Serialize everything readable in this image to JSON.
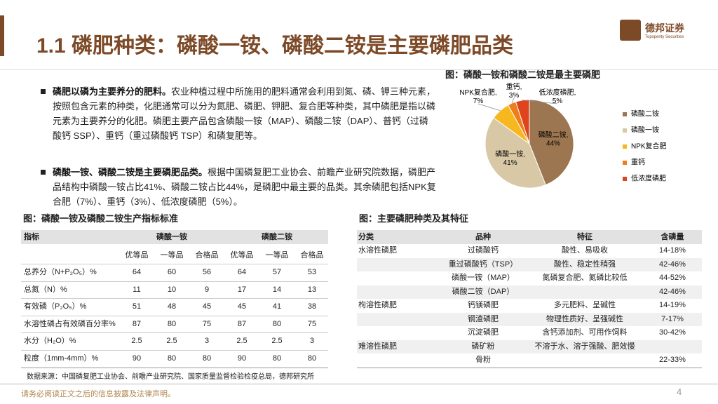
{
  "header": {
    "title": "1.1 磷肥种类：磷酸一铵、磷酸二铵是主要磷肥品类",
    "logo_name": "德邦证券",
    "logo_sub": "Topsperity Securities"
  },
  "bullets": [
    {
      "bold": "磷肥以磷为主要养分的肥料。",
      "text": "农业种植过程中所施用的肥料通常会利用到氮、磷、钾三种元素，按照包含元素的种类，化肥通常可以分为氮肥、磷肥、钾肥、复合肥等种类，其中磷肥是指以磷元素为主要养分的化肥。磷肥主要产品包含磷酸一铵（MAP）、磷酸二铵（DAP）、普钙（过磷酸钙 SSP）、重钙（重过磷酸钙 TSP）和磷复肥等。"
    },
    {
      "bold": "磷酸一铵、磷酸二铵是主要磷肥品类。",
      "text": "根据中国磷复肥工业协会、前瞻产业研究院数据，磷肥产品结构中磷酸一铵占比41%、磷酸二铵占比44%，是磷肥中最主要的品类。其余磷肥包括NPK复合肥（7%）、重钙（3%）、低浓度磷肥（5%）。"
    }
  ],
  "chart_data": {
    "type": "pie",
    "title": "图：磷酸一铵和磷酸二铵是最主要磷肥",
    "categories": [
      "磷酸二铵",
      "磷酸一铵",
      "NPK复合肥",
      "重钙",
      "低浓度磷肥"
    ],
    "values": [
      44,
      41,
      7,
      3,
      5
    ],
    "value_labels": [
      "磷酸二铵, 44%",
      "磷酸一铵, 41%",
      "NPK复合肥, 7%",
      "重钙, 3%",
      "低浓度磷肥, 5%"
    ],
    "colors": [
      "#9c7650",
      "#d8c8a6",
      "#f6b81e",
      "#ef7d1a",
      "#e0441c"
    ],
    "legend": "right"
  },
  "table1": {
    "title": "图：磷酸一铵及磷酸二铵生产指标标准",
    "header": [
      "指标",
      "磷酸一铵",
      "磷酸二铵"
    ],
    "subheader": [
      "优等品",
      "一等品",
      "合格品",
      "优等品",
      "一等品",
      "合格品"
    ],
    "rows": [
      [
        "总养分（N+P₂O₅）%",
        "64",
        "60",
        "56",
        "64",
        "57",
        "53"
      ],
      [
        "总氮（N）%",
        "11",
        "10",
        "9",
        "17",
        "14",
        "13"
      ],
      [
        "有效磷（P₂O₅）%",
        "51",
        "48",
        "45",
        "45",
        "41",
        "38"
      ],
      [
        "水溶性磷占有效磷百分率%",
        "87",
        "80",
        "75",
        "87",
        "80",
        "75"
      ],
      [
        "水分（H₂O）%",
        "2.5",
        "2.5",
        "3",
        "2.5",
        "2.5",
        "3"
      ],
      [
        "粒度（1mm-4mm）%",
        "90",
        "80",
        "80",
        "90",
        "80",
        "80"
      ]
    ],
    "source": "数据来源：中国磷复肥工业协会、前瞻产业研究院、国家质量监督检验检疫总局，德邦研究所"
  },
  "table2": {
    "title": "图：主要磷肥种类及其特征",
    "header": [
      "分类",
      "品种",
      "特征",
      "含磷量"
    ],
    "rows": [
      [
        "水溶性磷肥",
        "过磷酸钙",
        "酸性、易吸收",
        "14-18%"
      ],
      [
        null,
        "重过磷酸钙（TSP）",
        "酸性、稳定性稍强",
        "42-46%"
      ],
      [
        null,
        "磷酸一铵（MAP）",
        "氮磷复合肥、氮磷比较低",
        "44-52%"
      ],
      [
        null,
        "磷酸二铵（DAP）",
        null,
        "42-46%"
      ],
      [
        "枸溶性磷肥",
        "钙镁磷肥",
        "多元肥料、呈碱性",
        "14-19%"
      ],
      [
        null,
        "钢渣磷肥",
        "物理性质好、呈强碱性",
        "7-17%"
      ],
      [
        null,
        "沉淀磷肥",
        "含钙添加剂、可用作饲料",
        "30-42%"
      ],
      [
        "难溶性磷肥",
        "磷矿粉",
        "不溶于水、溶于强酸、肥效慢",
        null
      ],
      [
        null,
        "骨粉",
        null,
        "22-33%"
      ]
    ]
  },
  "footer": {
    "disclaimer": "请务必阅读正文之后的信息披露及法律声明。",
    "page": "4"
  }
}
